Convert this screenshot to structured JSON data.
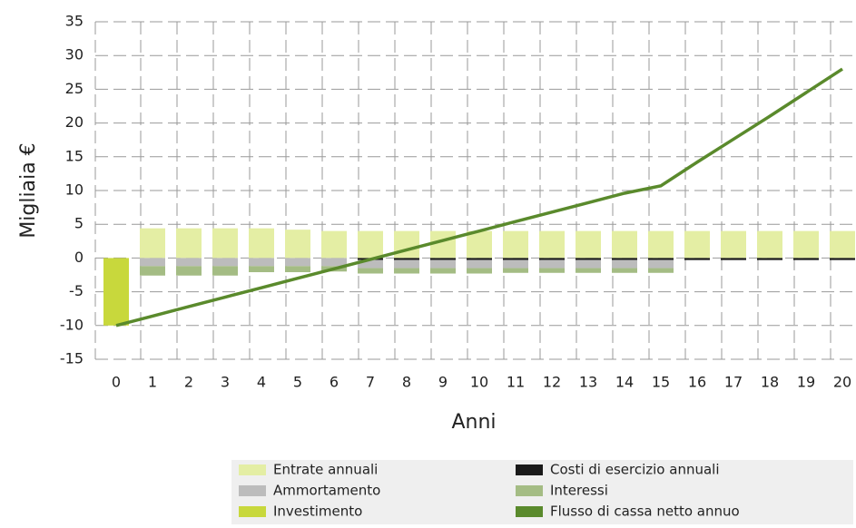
{
  "chart_data": {
    "type": "bar",
    "ylabel": "Migliaia €",
    "xlabel": "Anni",
    "categories": [
      "0",
      "1",
      "2",
      "3",
      "4",
      "5",
      "6",
      "7",
      "8",
      "9",
      "10",
      "11",
      "12",
      "13",
      "14",
      "15",
      "16",
      "17",
      "18",
      "19",
      "20"
    ],
    "ylim": [
      -15,
      35
    ],
    "yticks": [
      -15,
      -10,
      -5,
      0,
      5,
      10,
      15,
      20,
      25,
      30,
      35
    ],
    "grid": true,
    "series": [
      {
        "name": "Entrate annuali",
        "color": "#e4eea4",
        "values": [
          0,
          4.4,
          4.4,
          4.4,
          4.4,
          4.2,
          4.0,
          4.0,
          4.0,
          4.0,
          4.0,
          4.0,
          4.0,
          4.0,
          4.0,
          4.0,
          4.0,
          4.0,
          4.0,
          4.0,
          4.0
        ]
      },
      {
        "name": "Costi di esercizio annuali",
        "color": "#1a1a1a",
        "values": [
          0,
          0,
          0,
          0,
          0,
          0,
          0,
          -0.3,
          -0.3,
          -0.3,
          -0.3,
          -0.3,
          -0.3,
          -0.3,
          -0.3,
          -0.3,
          -0.3,
          -0.3,
          -0.3,
          -0.3,
          -0.3
        ]
      },
      {
        "name": "Ammortamento",
        "color": "#bcbcbc",
        "values": [
          0,
          -1.2,
          -1.2,
          -1.2,
          -1.2,
          -1.2,
          -1.2,
          -1.2,
          -1.2,
          -1.2,
          -1.2,
          -1.2,
          -1.2,
          -1.2,
          -1.2,
          -1.2,
          0,
          0,
          0,
          0,
          0
        ]
      },
      {
        "name": "Interessi",
        "color": "#a4bc84",
        "values": [
          0,
          -1.4,
          -1.4,
          -1.4,
          -0.9,
          -0.9,
          -0.8,
          -0.8,
          -0.8,
          -0.8,
          -0.8,
          -0.7,
          -0.7,
          -0.7,
          -0.7,
          -0.7,
          0,
          0,
          0,
          0,
          0
        ]
      },
      {
        "name": "Investimento",
        "color": "#c8d83c",
        "values": [
          -10,
          0,
          0,
          0,
          0,
          0,
          0,
          0,
          0,
          0,
          0,
          0,
          0,
          0,
          0,
          0,
          0,
          0,
          0,
          0,
          0
        ]
      },
      {
        "name": "Flusso di cassa netto annuo",
        "color": "#5a8a2c",
        "type": "line",
        "values": [
          -10,
          -8.6,
          -7.2,
          -5.8,
          -4.4,
          -3.0,
          -1.6,
          -0.2,
          1.2,
          2.6,
          4.0,
          5.4,
          6.8,
          8.2,
          9.6,
          10.7,
          14.2,
          17.6,
          21.0,
          24.5,
          28.0
        ]
      }
    ]
  }
}
